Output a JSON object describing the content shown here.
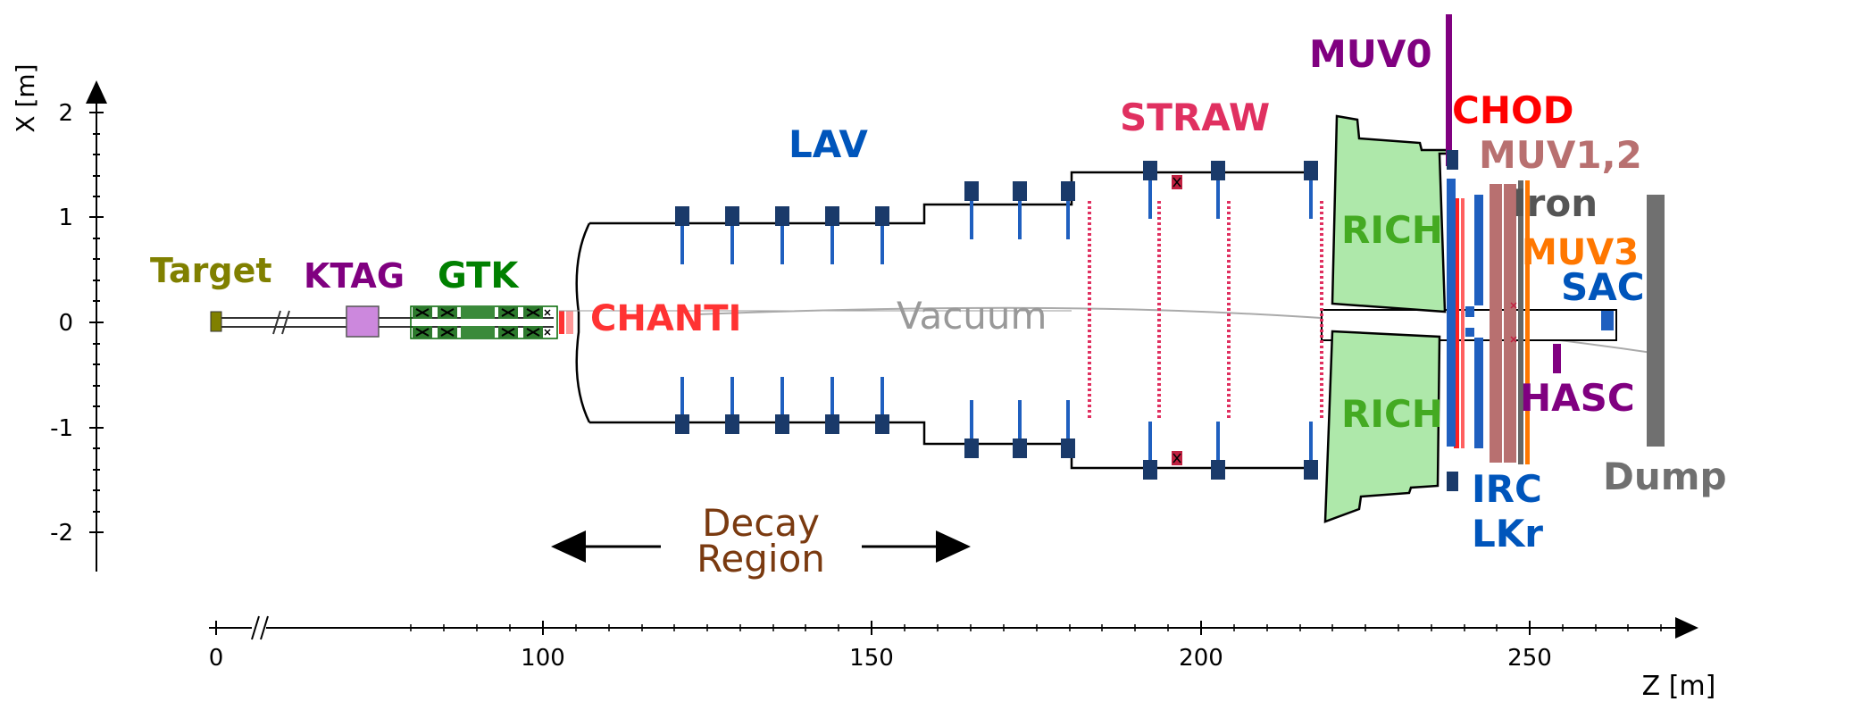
{
  "axes": {
    "x_label": "X [m]",
    "z_label": "Z [m]",
    "x_ticks": [
      "2",
      "1",
      "0",
      "-1",
      "-2"
    ],
    "z_ticks": [
      "0",
      "100",
      "150",
      "200",
      "250"
    ]
  },
  "labels": {
    "target": "Target",
    "ktag": "KTAG",
    "gtk": "GTK",
    "chanti": "CHANTI",
    "lav": "LAV",
    "vacuum": "Vacuum",
    "straw": "STRAW",
    "muv0": "MUV0",
    "rich_top": "RICH",
    "rich_bottom": "RICH",
    "chod": "CHOD",
    "muv12": "MUV1,2",
    "iron": "Iron",
    "muv3": "MUV3",
    "sac": "SAC",
    "hasc": "HASC",
    "irc": "IRC",
    "lkr": "LKr",
    "dump": "Dump",
    "decay_line1": "Decay",
    "decay_line2": "Region"
  },
  "colors": {
    "target": "#808000",
    "ktag": "#800080",
    "gtk": "#008000",
    "chanti": "#ff3333",
    "lav": "#0055bb",
    "vacuum": "#999999",
    "straw": "#e03060",
    "muv0": "#800080",
    "rich": "#44aa22",
    "rich_fill": "#aee8aa",
    "chod": "#ff0000",
    "muv12": "#b87070",
    "iron": "#555555",
    "muv3": "#ff7700",
    "sac": "#0055bb",
    "hasc": "#800080",
    "irc": "#0055bb",
    "lkr": "#0055bb",
    "dump": "#707070",
    "decay": "#7a3a10",
    "navy_block": "#1a3a6a"
  }
}
